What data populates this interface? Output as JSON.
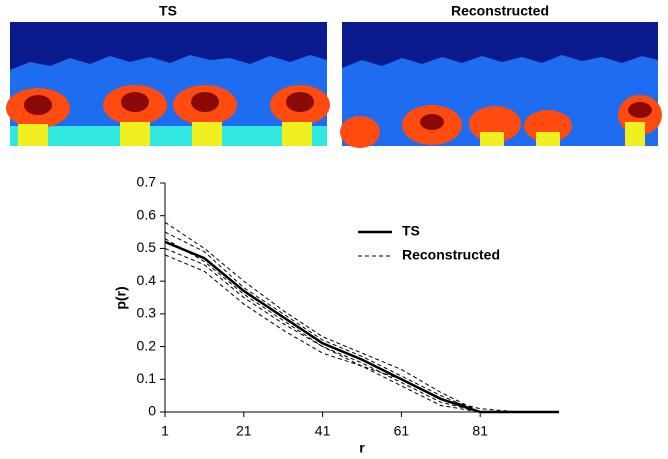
{
  "images": [
    {
      "title": "TS"
    },
    {
      "title": "Reconstructed"
    }
  ],
  "chart_data": {
    "type": "line",
    "xlabel": "r",
    "ylabel": "p(r)",
    "x": [
      1,
      11,
      21,
      31,
      41,
      51,
      61,
      71,
      81,
      91,
      101
    ],
    "xlim": [
      1,
      101
    ],
    "xticks": [
      1,
      21,
      41,
      61,
      81
    ],
    "ylim": [
      0,
      0.7
    ],
    "yticks": [
      0,
      0.1,
      0.2,
      0.3,
      0.4,
      0.5,
      0.6,
      0.7
    ],
    "legend": "upper right",
    "series": [
      {
        "name": "TS",
        "color": "#000000",
        "style": "solid",
        "values": [
          0.52,
          0.47,
          0.37,
          0.29,
          0.21,
          0.16,
          0.1,
          0.04,
          0,
          0,
          0
        ]
      },
      {
        "name": "Reconstructed",
        "color": "#000000",
        "style": "dashed",
        "values": [
          0.58,
          0.5,
          0.4,
          0.31,
          0.23,
          0.18,
          0.13,
          0.06,
          0,
          0,
          0
        ]
      },
      {
        "name": "Reconstructed",
        "color": "#000000",
        "style": "dashed",
        "values": [
          0.55,
          0.49,
          0.38,
          0.3,
          0.22,
          0.17,
          0.11,
          0.05,
          0,
          0,
          0
        ]
      },
      {
        "name": "Reconstructed",
        "color": "#000000",
        "style": "dashed",
        "values": [
          0.5,
          0.45,
          0.35,
          0.27,
          0.2,
          0.15,
          0.09,
          0.03,
          0,
          0,
          0
        ]
      },
      {
        "name": "Reconstructed",
        "color": "#000000",
        "style": "dashed",
        "values": [
          0.48,
          0.43,
          0.33,
          0.25,
          0.18,
          0.14,
          0.08,
          0.02,
          0,
          0,
          0
        ]
      },
      {
        "name": "Reconstructed",
        "color": "#000000",
        "style": "dashed",
        "values": [
          0.53,
          0.46,
          0.36,
          0.28,
          0.2,
          0.14,
          0.1,
          0.04,
          0.01,
          0,
          0
        ]
      }
    ]
  }
}
